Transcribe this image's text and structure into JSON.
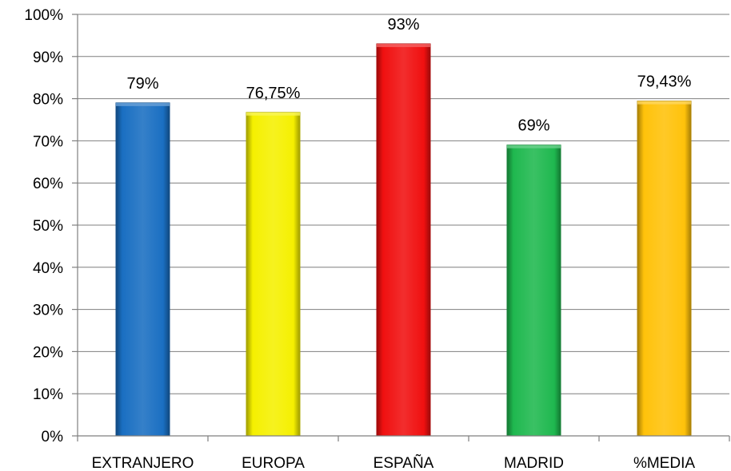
{
  "chart_data": {
    "type": "bar",
    "title": "",
    "xlabel": "",
    "ylabel": "",
    "categories": [
      "EXTRANJERO",
      "EUROPA",
      "ESPAÑA",
      "MADRID",
      "%MEDIA"
    ],
    "values": [
      79,
      76.75,
      93,
      69,
      79.43
    ],
    "data_labels": [
      "79%",
      "76,75%",
      "93%",
      "69%",
      "79,43%"
    ],
    "bar_colors": [
      "#1a6fc2",
      "#f5f000",
      "#f01010",
      "#1fb84f",
      "#ffc20a"
    ],
    "ylim": [
      0,
      100
    ],
    "yticks": [
      0,
      10,
      20,
      30,
      40,
      50,
      60,
      70,
      80,
      90,
      100
    ],
    "ytick_labels": [
      "0%",
      "10%",
      "20%",
      "30%",
      "40%",
      "50%",
      "60%",
      "70%",
      "80%",
      "90%",
      "100%"
    ],
    "grid": true,
    "legend": "none"
  }
}
